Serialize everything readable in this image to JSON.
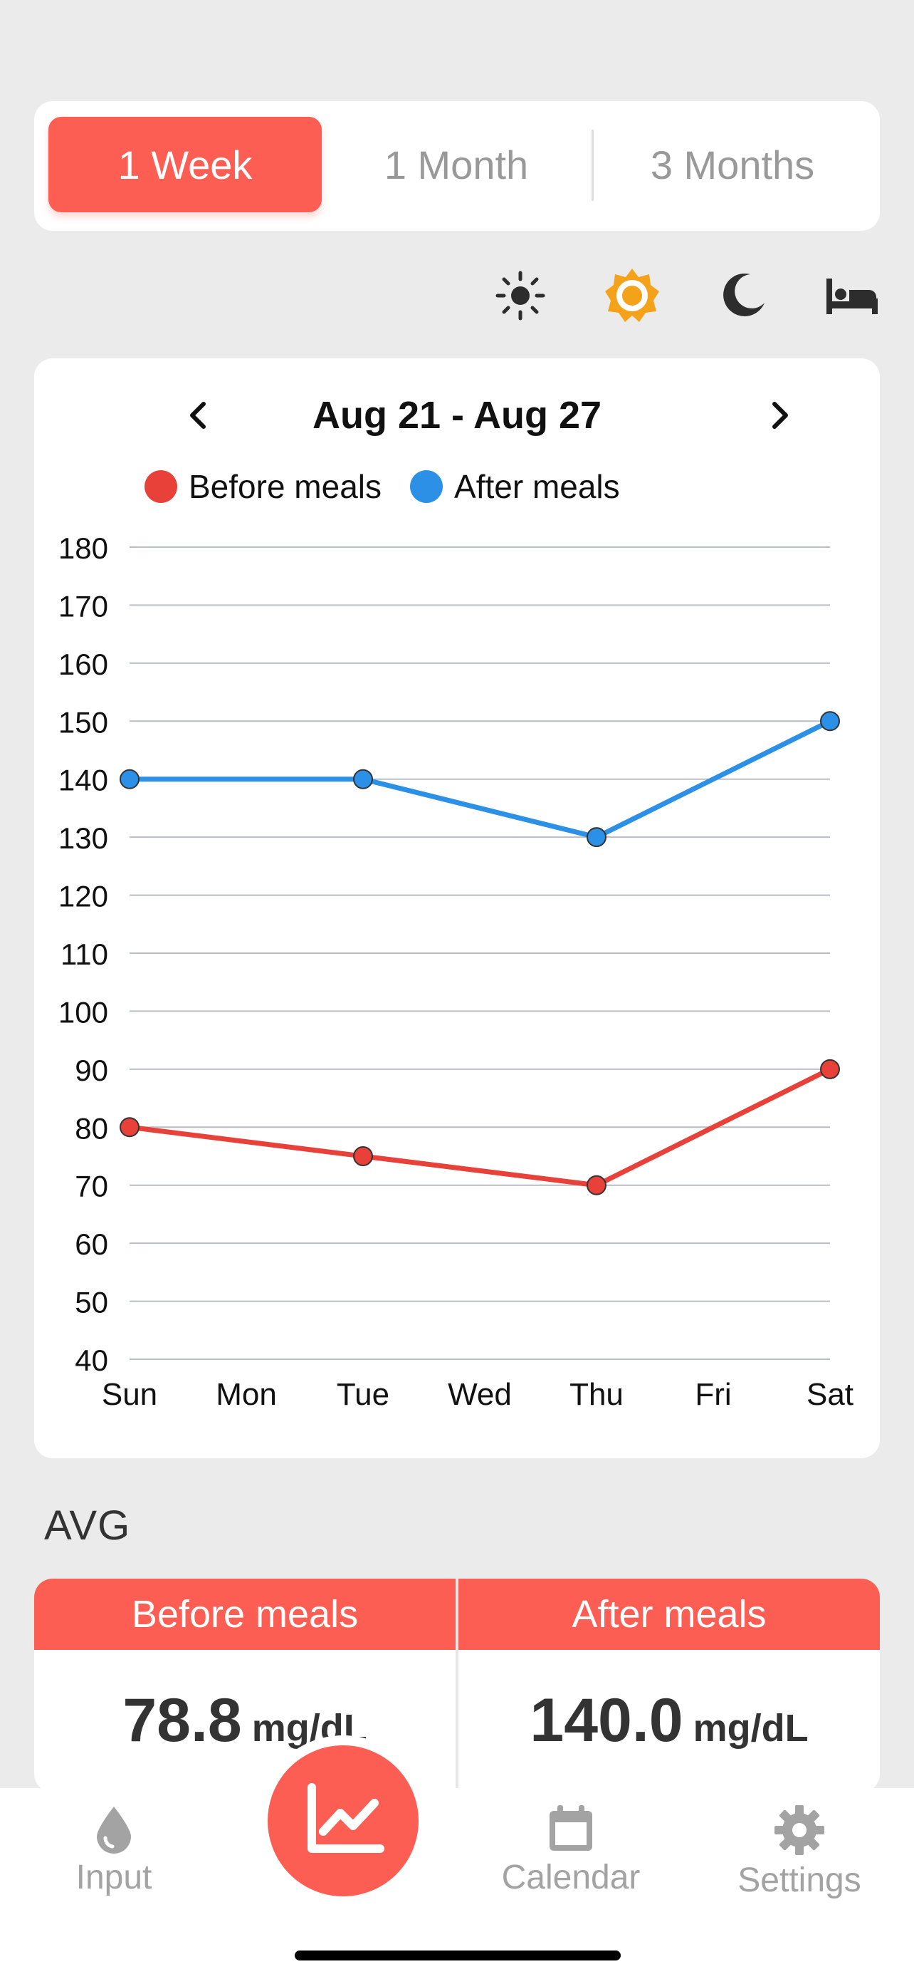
{
  "range_tabs": [
    {
      "label": "1 Week",
      "active": true
    },
    {
      "label": "1 Month",
      "active": false
    },
    {
      "label": "3 Months",
      "active": false
    }
  ],
  "time_of_day": {
    "icons": [
      "sun-icon",
      "sun-icon",
      "moon-icon",
      "bed-icon"
    ],
    "selected": "sun-icon"
  },
  "chart": {
    "date_range": "Aug 21 - Aug 27",
    "prev": "previous-week",
    "next": "next-week"
  },
  "chart_data": {
    "type": "line",
    "title": "",
    "x": [
      "Sun",
      "Mon",
      "Tue",
      "Wed",
      "Thu",
      "Fri",
      "Sat"
    ],
    "ylim": [
      40,
      180
    ],
    "yticks": [
      180,
      170,
      160,
      150,
      140,
      130,
      120,
      110,
      100,
      90,
      80,
      70,
      60,
      50,
      40
    ],
    "grid": true,
    "legend_position": "top",
    "series": [
      {
        "name": "Before meals",
        "color": "#e84139",
        "points": [
          [
            "Sun",
            80
          ],
          [
            "Tue",
            75
          ],
          [
            "Thu",
            70
          ],
          [
            "Sat",
            90
          ]
        ]
      },
      {
        "name": "After meals",
        "color": "#2b90e6",
        "points": [
          [
            "Sun",
            140
          ],
          [
            "Tue",
            140
          ],
          [
            "Thu",
            130
          ],
          [
            "Sat",
            150
          ]
        ]
      }
    ]
  },
  "avg": {
    "title": "AVG",
    "before": {
      "label": "Before meals",
      "value": "78.8",
      "unit": "mg/dL"
    },
    "after": {
      "label": "After meals",
      "value": "140.0",
      "unit": "mg/dL"
    }
  },
  "tabbar": {
    "input": "Input",
    "calendar": "Calendar",
    "settings": "Settings"
  },
  "colors": {
    "accent": "#fd5e53",
    "selected_icon": "#f5a21b",
    "before_line": "#e84139",
    "after_line": "#2b90e6"
  }
}
